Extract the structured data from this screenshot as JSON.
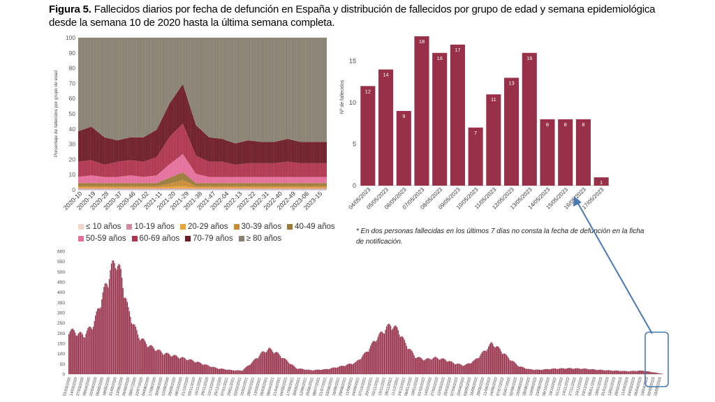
{
  "title": {
    "bold": "Figura 5.",
    "rest": "Fallecidos diarios por fecha de defunción en España y distribución de fallecidos por grupo de edad y semana epidemiológica desde la semana 10 de 2020 hasta la última semana completa."
  },
  "note": "* En dos personas fallecidas en los últimos 7 días no consta la fecha de defunción en la ficha de notificación.",
  "colors": {
    "bar": "#98304a",
    "arrow": "#4a78b5",
    "age": [
      "#f2d7cf",
      "#d58aa0",
      "#e8a33a",
      "#c98a35",
      "#9b7a3a",
      "#e36f9a",
      "#b0354f",
      "#6e1d26",
      "#888070"
    ]
  },
  "chart_data": [
    {
      "type": "area",
      "title": "",
      "ylabel": "Porcentaje de fallecidos por grupo de edad",
      "ylim": [
        0,
        100
      ],
      "yticks": [
        0,
        10,
        20,
        30,
        40,
        50,
        60,
        70,
        80,
        90,
        100
      ],
      "x_ticks": [
        "2020-10",
        "2020-19",
        "2020-28",
        "2020-37",
        "2020-46",
        "2021-02",
        "2021-11",
        "2021-20",
        "2021-29",
        "2021-38",
        "2021-47",
        "2022-04",
        "2022-13",
        "2022-22",
        "2022-31",
        "2022-40",
        "2022-49",
        "2023-06",
        "2023-15"
      ],
      "legend": [
        "≤ 10 años",
        "10-19 años",
        "20-29 años",
        "30-39 años",
        "40-49 años",
        "50-59 años",
        "60-69 años",
        "70-79 años",
        "≥ 80 años"
      ],
      "legend_position": "bottom",
      "note": "stacked percentage; ≥ 80 años fills the remainder up to 100",
      "series": [
        {
          "name": "≤ 10 años",
          "values": [
            0.5,
            0.5,
            0.5,
            0.5,
            0.5,
            0.5,
            0.5,
            0.5,
            0.5,
            0.5,
            0.5,
            0.5,
            0.5,
            0.5,
            0.5,
            0.5,
            0.5,
            0.5,
            0.5,
            0.5
          ]
        },
        {
          "name": "10-19 años",
          "values": [
            0.5,
            0.5,
            0.5,
            0.5,
            0.5,
            0.5,
            0.5,
            0.5,
            0.5,
            0.5,
            0.5,
            0.5,
            0.5,
            0.5,
            0.5,
            0.5,
            0.5,
            0.5,
            0.5,
            0.5
          ]
        },
        {
          "name": "20-29 años",
          "values": [
            0.5,
            0.5,
            0.5,
            0.5,
            0.5,
            0.5,
            0.5,
            1,
            1.5,
            0.5,
            0.5,
            0.5,
            0.5,
            0.5,
            0.5,
            0.5,
            0.5,
            0.5,
            0.5,
            0.5
          ]
        },
        {
          "name": "30-39 años",
          "values": [
            1,
            1,
            1,
            1,
            1,
            1,
            1,
            2,
            4,
            1,
            1,
            1,
            1,
            1,
            1,
            1,
            1,
            1,
            1,
            1
          ]
        },
        {
          "name": "40-49 años",
          "values": [
            2,
            2,
            2,
            2,
            2,
            2,
            2,
            4,
            5,
            2,
            2,
            2,
            2,
            2,
            2,
            2,
            2,
            2,
            2,
            2
          ]
        },
        {
          "name": "50-59 años",
          "values": [
            4,
            5,
            4,
            4,
            5,
            4,
            5,
            9,
            12,
            6,
            4,
            4,
            4,
            4,
            4,
            4,
            4,
            4,
            4,
            4
          ]
        },
        {
          "name": "60-69 años",
          "values": [
            10,
            10,
            8,
            10,
            10,
            10,
            12,
            18,
            20,
            12,
            10,
            10,
            8,
            9,
            9,
            9,
            10,
            9,
            9,
            9
          ]
        },
        {
          "name": "70-79 años",
          "values": [
            20,
            22,
            18,
            14,
            15,
            16,
            18,
            22,
            26,
            20,
            16,
            15,
            14,
            15,
            14,
            14,
            15,
            14,
            14,
            14
          ]
        }
      ]
    },
    {
      "type": "bar",
      "title": "",
      "xlabel": "",
      "ylabel": "Nº de fallecidos",
      "ylim": [
        0,
        18
      ],
      "yticks": [
        0,
        5,
        10,
        15
      ],
      "categories": [
        "04/05/2023",
        "05/05/2023",
        "06/05/2023",
        "07/05/2023",
        "08/05/2023",
        "09/05/2023",
        "10/05/2023",
        "11/05/2023",
        "12/05/2023",
        "13/05/2023",
        "14/05/2023",
        "15/05/2023",
        "16/05/2023",
        "17/05/2023"
      ],
      "values": [
        12,
        14,
        9,
        18,
        16,
        17,
        7,
        11,
        13,
        16,
        8,
        8,
        8,
        1
      ]
    },
    {
      "type": "bar",
      "title": "",
      "ylim": [
        0,
        600
      ],
      "yticks": [
        0,
        50,
        100,
        150,
        200,
        250,
        300,
        350,
        400,
        450,
        500,
        550,
        600
      ],
      "x_ticks": [
        "01/03/2020",
        "14/03/2020",
        "27/03/2020",
        "09/04/2020",
        "22/04/2020",
        "05/05/2020",
        "18/05/2020",
        "31/05/2020",
        "13/06/2020",
        "26/06/2020",
        "09/07/2020",
        "22/07/2020",
        "04/08/2020",
        "17/08/2020",
        "30/08/2020",
        "12/09/2020",
        "25/09/2020",
        "08/10/2020",
        "21/10/2020",
        "03/11/2020",
        "16/11/2020",
        "29/11/2020",
        "12/12/2020",
        "25/12/2020",
        "07/01/2021",
        "20/01/2021",
        "02/02/2021",
        "15/02/2021",
        "28/02/2021",
        "13/03/2021",
        "26/03/2021",
        "08/04/2021",
        "21/04/2021",
        "04/05/2021",
        "17/05/2021",
        "30/05/2021",
        "12/06/2021",
        "25/06/2021",
        "08/07/2021",
        "21/07/2021",
        "03/08/2021",
        "16/08/2021",
        "29/08/2021",
        "11/09/2021",
        "24/09/2021",
        "07/10/2021",
        "20/10/2021",
        "02/11/2021",
        "15/11/2021",
        "28/11/2021",
        "11/12/2021",
        "24/12/2021",
        "06/01/2022",
        "19/01/2022",
        "01/02/2022",
        "14/02/2022",
        "27/02/2022",
        "12/03/2022",
        "25/03/2022",
        "07/04/2022",
        "20/04/2022",
        "03/05/2022",
        "16/05/2022",
        "29/05/2022",
        "11/06/2022",
        "24/06/2022",
        "07/07/2022",
        "20/07/2022",
        "02/08/2022",
        "15/08/2022",
        "28/08/2022",
        "10/09/2022",
        "23/09/2022",
        "06/10/2022",
        "19/10/2022",
        "01/11/2022",
        "14/11/2022",
        "27/11/2022",
        "10/12/2022",
        "23/12/2022",
        "05/01/2023",
        "18/01/2023",
        "31/01/2023",
        "13/02/2023",
        "26/02/2023",
        "11/03/2023",
        "24/03/2023",
        "06/04/2023",
        "19/04/2023",
        "02/05/2023",
        "15/05/2023"
      ],
      "profile_points": [
        [
          0,
          230
        ],
        [
          6,
          200
        ],
        [
          10,
          260
        ],
        [
          14,
          420
        ],
        [
          17,
          540
        ],
        [
          19,
          590
        ],
        [
          21,
          520
        ],
        [
          24,
          330
        ],
        [
          28,
          200
        ],
        [
          32,
          150
        ],
        [
          38,
          110
        ],
        [
          44,
          90
        ],
        [
          50,
          70
        ],
        [
          56,
          45
        ],
        [
          60,
          30
        ],
        [
          66,
          20
        ],
        [
          70,
          18
        ],
        [
          74,
          60
        ],
        [
          78,
          110
        ],
        [
          81,
          130
        ],
        [
          84,
          110
        ],
        [
          88,
          70
        ],
        [
          92,
          30
        ],
        [
          98,
          20
        ],
        [
          104,
          25
        ],
        [
          110,
          40
        ],
        [
          116,
          60
        ],
        [
          120,
          110
        ],
        [
          124,
          180
        ],
        [
          128,
          235
        ],
        [
          130,
          255
        ],
        [
          133,
          230
        ],
        [
          136,
          160
        ],
        [
          140,
          90
        ],
        [
          144,
          75
        ],
        [
          148,
          85
        ],
        [
          152,
          75
        ],
        [
          156,
          55
        ],
        [
          160,
          45
        ],
        [
          164,
          70
        ],
        [
          168,
          120
        ],
        [
          171,
          160
        ],
        [
          174,
          130
        ],
        [
          178,
          80
        ],
        [
          182,
          40
        ],
        [
          186,
          25
        ],
        [
          190,
          22
        ],
        [
          196,
          28
        ],
        [
          202,
          30
        ],
        [
          208,
          28
        ],
        [
          214,
          22
        ],
        [
          220,
          18
        ],
        [
          226,
          15
        ],
        [
          232,
          18
        ],
        [
          236,
          10
        ],
        [
          240,
          1
        ]
      ]
    }
  ]
}
